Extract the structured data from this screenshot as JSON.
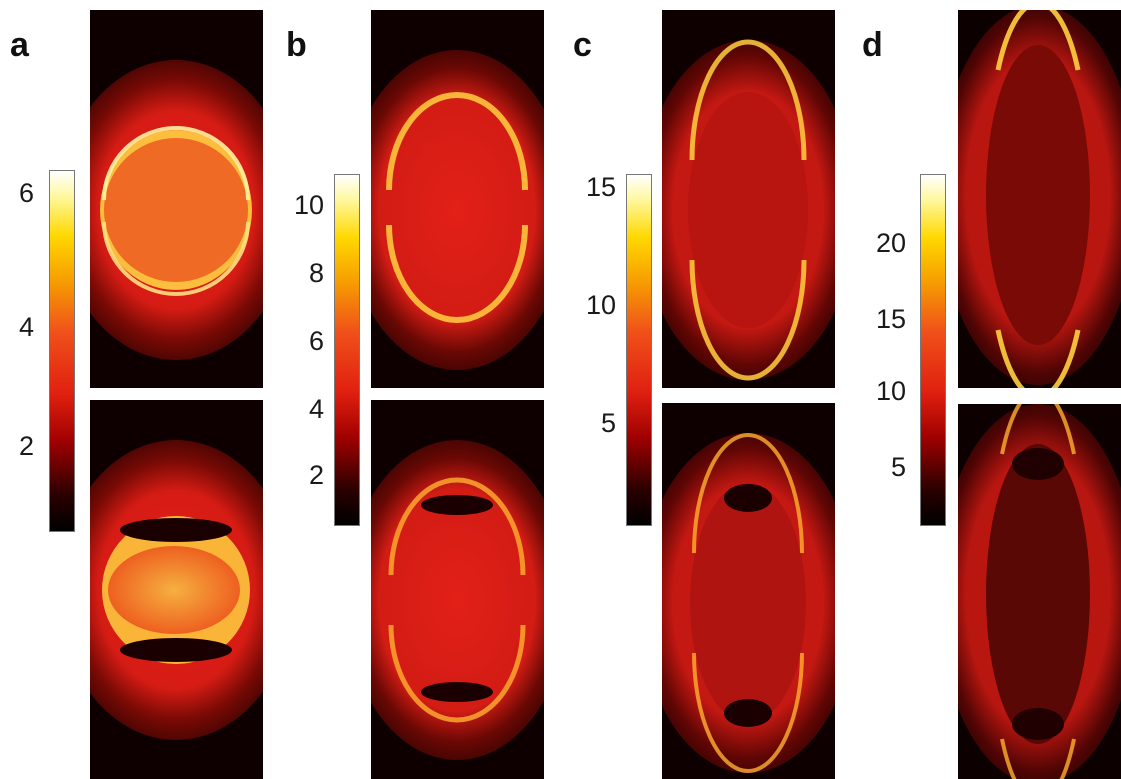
{
  "panels": [
    {
      "letter": "a",
      "colorbar_ticks": [
        "6",
        "4",
        "2"
      ]
    },
    {
      "letter": "b",
      "colorbar_ticks": [
        "10",
        "8",
        "6",
        "4",
        "2"
      ]
    },
    {
      "letter": "c",
      "colorbar_ticks": [
        "15",
        "10",
        "5"
      ]
    },
    {
      "letter": "d",
      "colorbar_ticks": [
        "20",
        "15",
        "10",
        "5"
      ]
    }
  ],
  "colormap": [
    "#000000",
    "#a00000",
    "#e02010",
    "#f0501a",
    "#f7a000",
    "#ffd800",
    "#ffffff"
  ]
}
